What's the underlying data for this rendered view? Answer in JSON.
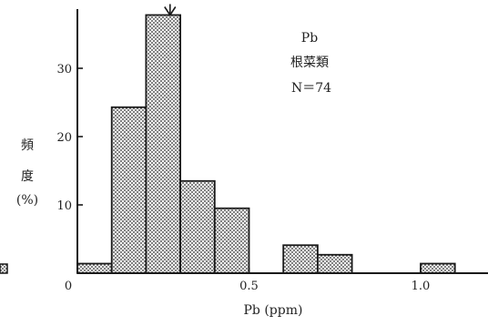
{
  "chart_data": {
    "type": "bar",
    "title": "",
    "xlabel": "Pb (ppm)",
    "ylabel": "頻\n度\n(%)",
    "ylim": [
      0,
      37.8
    ],
    "xlim": [
      0,
      1.25
    ],
    "x_ticks": [
      {
        "value": 0,
        "label": "0"
      },
      {
        "value": 0.5,
        "label": "0.5"
      },
      {
        "value": 1.0,
        "label": "1.0"
      }
    ],
    "y_ticks": [
      {
        "value": 10,
        "label": "10"
      },
      {
        "value": 20,
        "label": "20"
      },
      {
        "value": 30,
        "label": "30"
      }
    ],
    "bin_width": 0.1,
    "bins": [
      {
        "x_start": 0.0,
        "x_end": 0.1,
        "value": 1.4
      },
      {
        "x_start": 0.1,
        "x_end": 0.2,
        "value": 24.3
      },
      {
        "x_start": 0.2,
        "x_end": 0.3,
        "value": 37.8
      },
      {
        "x_start": 0.3,
        "x_end": 0.4,
        "value": 13.5
      },
      {
        "x_start": 0.4,
        "x_end": 0.5,
        "value": 9.5
      },
      {
        "x_start": 0.5,
        "x_end": 0.6,
        "value": 0
      },
      {
        "x_start": 0.6,
        "x_end": 0.7,
        "value": 4.1
      },
      {
        "x_start": 0.7,
        "x_end": 0.8,
        "value": 2.7
      },
      {
        "x_start": 0.8,
        "x_end": 0.9,
        "value": 0
      },
      {
        "x_start": 0.9,
        "x_end": 1.0,
        "value": 0
      },
      {
        "x_start": 1.0,
        "x_end": 1.1,
        "value": 1.4
      }
    ],
    "median_marker_x": 0.27,
    "annotation": {
      "element": "Pb",
      "category": "根菜類",
      "n": "N＝74"
    },
    "grid": false,
    "legend": "none"
  },
  "colors": {
    "bar_outline": "#1a1a1a",
    "bar_fill_dots": "#333333",
    "background": "#ffffff"
  }
}
